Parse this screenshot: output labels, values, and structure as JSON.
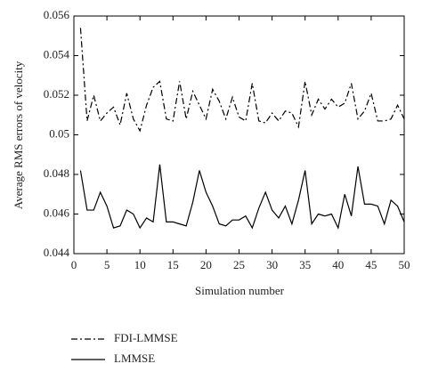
{
  "chart_data": {
    "type": "line",
    "xlabel": "Simulation number",
    "ylabel": "Average RMS errors of velocity",
    "x": [
      1,
      2,
      3,
      4,
      5,
      6,
      7,
      8,
      9,
      10,
      11,
      12,
      13,
      14,
      15,
      16,
      17,
      18,
      19,
      20,
      21,
      22,
      23,
      24,
      25,
      26,
      27,
      28,
      29,
      30,
      31,
      32,
      33,
      34,
      35,
      36,
      37,
      38,
      39,
      40,
      41,
      42,
      43,
      44,
      45,
      46,
      47,
      48,
      49,
      50
    ],
    "series": [
      {
        "name": "FDI-LMMSE",
        "color": "#000000",
        "linestyle": "dashdot",
        "values": [
          0.0554,
          0.0507,
          0.052,
          0.0507,
          0.0511,
          0.0514,
          0.0505,
          0.0521,
          0.0508,
          0.0502,
          0.0515,
          0.0524,
          0.0527,
          0.0508,
          0.0507,
          0.0527,
          0.0508,
          0.0522,
          0.0515,
          0.0508,
          0.0523,
          0.0517,
          0.0508,
          0.0519,
          0.0509,
          0.0507,
          0.0526,
          0.0507,
          0.0506,
          0.0511,
          0.0507,
          0.0512,
          0.0511,
          0.0504,
          0.0527,
          0.051,
          0.0518,
          0.0513,
          0.0518,
          0.0514,
          0.0516,
          0.0526,
          0.0508,
          0.0512,
          0.0521,
          0.0507,
          0.0507,
          0.0508,
          0.0515,
          0.0508
        ]
      },
      {
        "name": "LMMSE",
        "color": "#000000",
        "linestyle": "solid",
        "values": [
          0.0482,
          0.0462,
          0.0462,
          0.0471,
          0.0464,
          0.0453,
          0.0454,
          0.0462,
          0.046,
          0.0453,
          0.0458,
          0.0456,
          0.0485,
          0.0456,
          0.0456,
          0.0455,
          0.0454,
          0.0466,
          0.0482,
          0.0471,
          0.0464,
          0.0455,
          0.0454,
          0.0457,
          0.0457,
          0.0459,
          0.0453,
          0.0463,
          0.0471,
          0.0462,
          0.0458,
          0.0464,
          0.0455,
          0.0467,
          0.0482,
          0.0455,
          0.046,
          0.0459,
          0.046,
          0.0453,
          0.047,
          0.0459,
          0.0484,
          0.0465,
          0.0465,
          0.0464,
          0.0455,
          0.0467,
          0.0464,
          0.0456
        ]
      }
    ],
    "xlim": [
      0,
      50
    ],
    "xticks": [
      0,
      5,
      10,
      15,
      20,
      25,
      30,
      35,
      40,
      45,
      50
    ],
    "ylim": [
      0.044,
      0.056
    ],
    "yticks": [
      0.044,
      0.046,
      0.048,
      0.05,
      0.052,
      0.054,
      0.056
    ],
    "grid": false,
    "legend": "bottom-left"
  }
}
